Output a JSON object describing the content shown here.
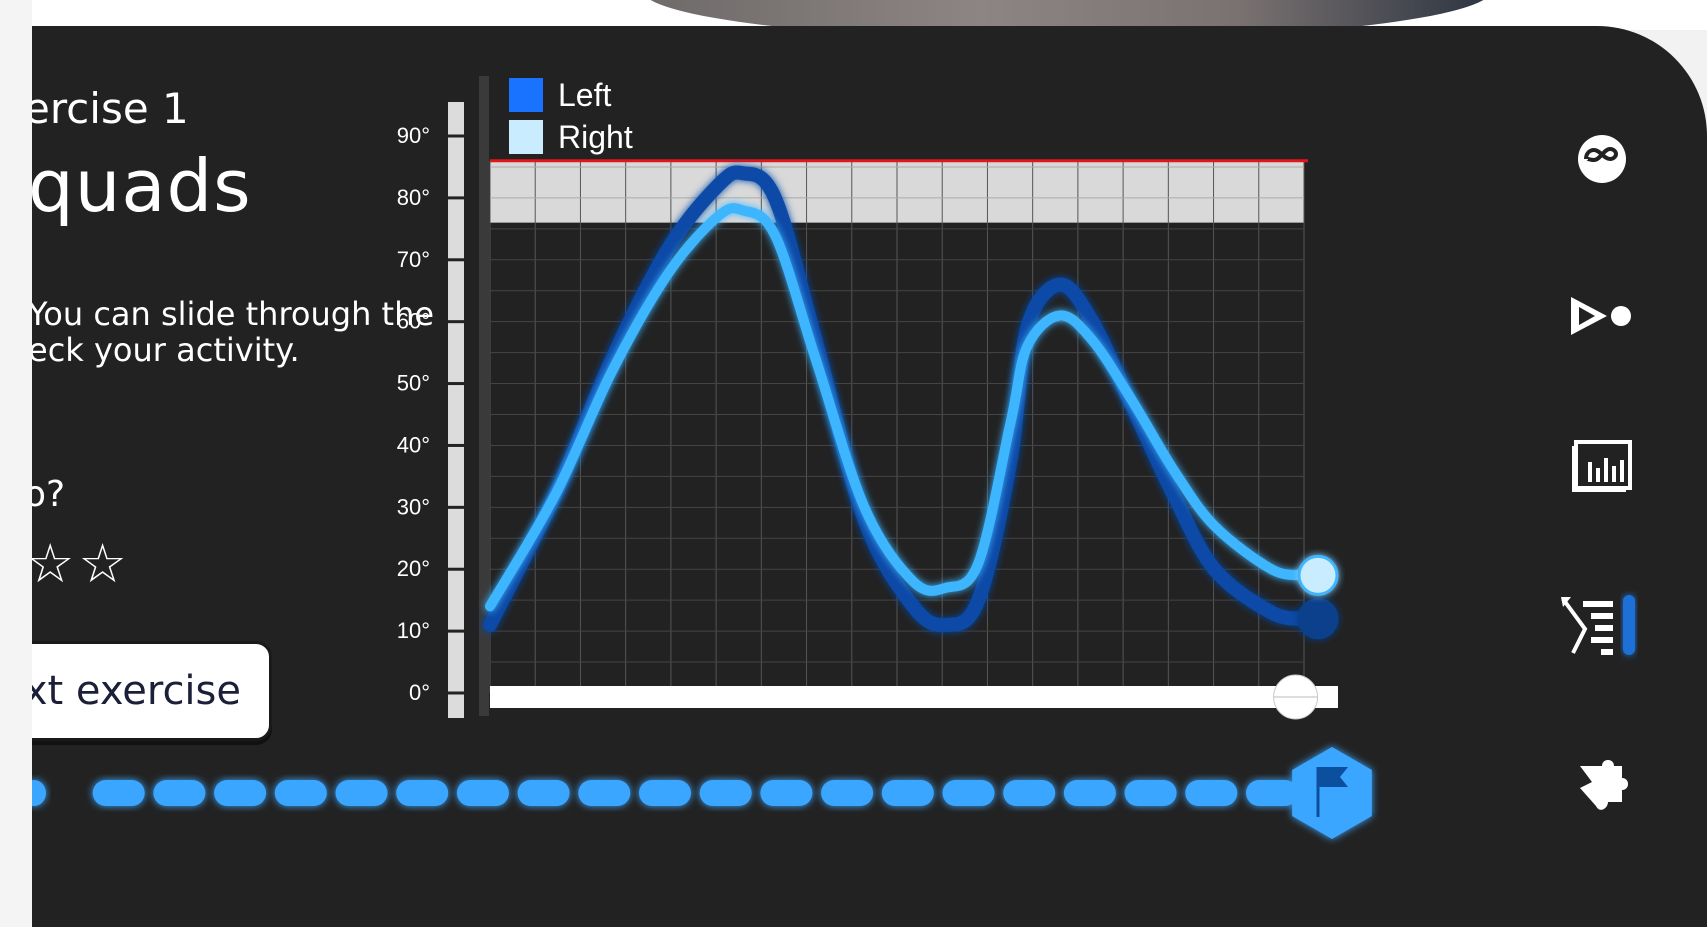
{
  "exercise": {
    "label": "ercise 1",
    "title": "quads",
    "description_line1": "You can slide through the",
    "description_line2": "eck your activity.",
    "question": "o?",
    "stars_display": "☆☆",
    "rating_total": 5,
    "rating_visible_empty": 2
  },
  "buttons": {
    "next_label": "xt exercise"
  },
  "sidebar": {
    "items": [
      {
        "icon": "infinity-icon",
        "name": "sidebar-item-infinity"
      },
      {
        "icon": "play-record-icon",
        "name": "sidebar-item-play"
      },
      {
        "icon": "report-icon",
        "name": "sidebar-item-report"
      },
      {
        "icon": "list-icon",
        "name": "sidebar-item-list",
        "active": true
      },
      {
        "icon": "puzzle-icon",
        "name": "sidebar-item-puzzle"
      }
    ]
  },
  "colors": {
    "panel": "#222222",
    "left_series": "#0d4aa6",
    "right_series": "#3db6ff",
    "target_band": "#d9d9d9",
    "target_line": "#e0161b",
    "accent": "#3aa6ff"
  },
  "progress": {
    "segments_total": 21,
    "flag_icon": "flag-icon"
  },
  "chart_data": {
    "type": "line",
    "title": "",
    "xlabel": "",
    "ylabel": "",
    "ylim": [
      0,
      90
    ],
    "xlim": [
      0,
      100
    ],
    "y_ticks": [
      "0°",
      "10°",
      "20°",
      "30°",
      "40°",
      "50°",
      "60°",
      "70°",
      "80°",
      "90°"
    ],
    "grid": true,
    "legend_position": "top-left",
    "target_band": [
      76,
      86
    ],
    "slider_position": 0.95,
    "series": [
      {
        "name": "Left",
        "x": [
          0,
          8,
          15,
          22,
          28,
          31,
          35,
          40,
          46,
          52,
          56,
          60,
          64,
          66,
          70,
          74,
          79,
          84,
          89,
          96,
          100
        ],
        "y": [
          11,
          32,
          54,
          72,
          82,
          84,
          80,
          57,
          28,
          14,
          11,
          15,
          38,
          59,
          66,
          60,
          46,
          32,
          20,
          13,
          12
        ]
      },
      {
        "name": "Right",
        "x": [
          0,
          8,
          15,
          22,
          28,
          31,
          35,
          40,
          46,
          52,
          56,
          60,
          64,
          66,
          70,
          74,
          79,
          84,
          89,
          96,
          100
        ],
        "y": [
          14,
          32,
          52,
          68,
          77,
          78,
          74,
          54,
          30,
          18,
          17,
          21,
          44,
          56,
          61,
          57,
          47,
          36,
          27,
          20,
          19
        ]
      }
    ]
  }
}
